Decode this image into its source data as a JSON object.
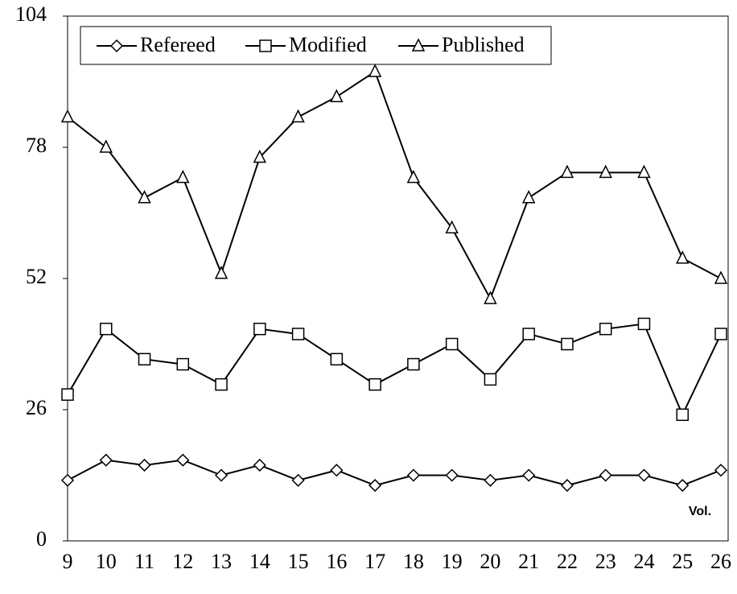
{
  "chart_data": {
    "type": "line",
    "categories": [
      "9",
      "10",
      "11",
      "12",
      "13",
      "14",
      "15",
      "16",
      "17",
      "18",
      "19",
      "20",
      "21",
      "22",
      "23",
      "24",
      "25",
      "26"
    ],
    "series": [
      {
        "name": "Refereed",
        "marker": "diamond",
        "color": "#000000",
        "values": [
          12,
          16,
          15,
          16,
          13,
          15,
          12,
          14,
          11,
          13,
          13,
          12,
          13,
          11,
          13,
          13,
          11,
          14
        ]
      },
      {
        "name": "Modified",
        "marker": "square",
        "color": "#000000",
        "values": [
          29,
          42,
          36,
          35,
          31,
          42,
          41,
          36,
          31,
          35,
          39,
          32,
          41,
          39,
          42,
          43,
          25,
          41
        ]
      },
      {
        "name": "Published",
        "marker": "triangle",
        "color": "#000000",
        "values": [
          84,
          78,
          68,
          72,
          53,
          76,
          84,
          88,
          93,
          72,
          62,
          48,
          68,
          73,
          73,
          73,
          56,
          52
        ]
      }
    ],
    "ylim": [
      0,
      104
    ],
    "yticks": [
      0,
      26,
      52,
      78,
      104
    ],
    "annotation": "Vol.",
    "legend": "top-left"
  }
}
